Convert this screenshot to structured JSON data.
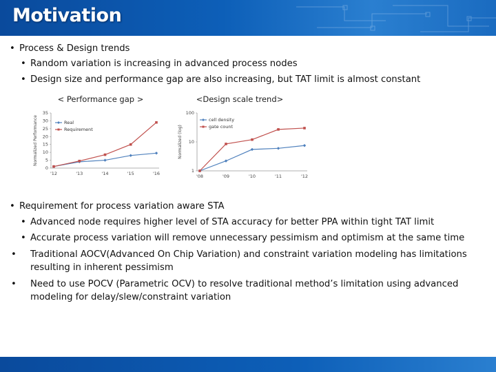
{
  "slide": {
    "title": "Motivation",
    "bullets_top": {
      "b1": "Process & Design trends",
      "b1a": "Random variation is increasing in advanced process nodes",
      "b1b": "Design size and performance gap are also increasing, but TAT limit is almost constant"
    },
    "bullets_bottom": {
      "b2": "Requirement for process variation aware STA",
      "b2a": "Advanced node requires higher level of STA accuracy for better PPA within tight TAT limit",
      "b2b": "Accurate process variation will remove unnecessary pessimism and optimism at the same time",
      "b2c": "Traditional AOCV(Advanced On Chip Variation) and constraint variation modeling has limitations resulting in inherent pessimism",
      "b2d": "Need to use POCV (Parametric OCV) to resolve traditional method’s limitation using advanced modeling for delay/slew/constraint variation"
    },
    "bullet_char": "•"
  },
  "chart_data": [
    {
      "type": "line",
      "title": "< Performance gap >",
      "ylabel": "Normalized Performance",
      "xlabel": "",
      "categories": [
        "'12",
        "'13",
        "'14",
        "'15",
        "'16"
      ],
      "yticks": [
        "0",
        "5",
        "10",
        "15",
        "20",
        "25",
        "30",
        "35"
      ],
      "ylim": [
        0,
        35
      ],
      "series": [
        {
          "name": "Real",
          "color": "#4f81bd",
          "values": [
            1,
            4,
            5,
            8,
            9.5
          ]
        },
        {
          "name": "Requirement",
          "color": "#c0504d",
          "values": [
            1,
            4.5,
            8.5,
            15,
            29
          ]
        }
      ],
      "legend": "top-left"
    },
    {
      "type": "line",
      "title": "<Design scale trend>",
      "ylabel": "Normalized (log)",
      "xlabel": "",
      "categories": [
        "'08",
        "'09",
        "'10",
        "'11",
        "'12"
      ],
      "yticks": [
        "1",
        "10",
        "100"
      ],
      "ylim": [
        1,
        100
      ],
      "yscale": "log",
      "series": [
        {
          "name": "cell density",
          "color": "#4f81bd",
          "values": [
            1,
            2.2,
            5.5,
            6,
            7.5
          ]
        },
        {
          "name": "gate count",
          "color": "#c0504d",
          "values": [
            1,
            8.5,
            12,
            27,
            30
          ]
        }
      ],
      "legend": "top-left"
    }
  ]
}
